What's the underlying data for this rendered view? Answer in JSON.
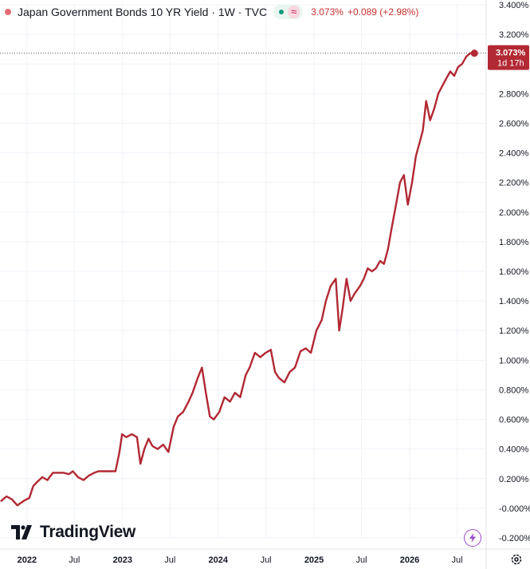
{
  "legend": {
    "title": "Japan Government Bonds 10 YR Yield · 1W · TVC",
    "value": "3.073%",
    "change": "+0.089 (+2.98%)",
    "wave_symbol": "≈"
  },
  "price_tag": {
    "value": "3.073%",
    "countdown": "1d 17h"
  },
  "logo_text": "TradingView",
  "colors": {
    "line": "#b22833",
    "tag_bg": "#b22833",
    "axis_text": "#131722",
    "dotted": "#555555",
    "change_red": "#c8302f"
  },
  "icons": [
    "tradingview-logo-icon",
    "lightning-icon",
    "gear-icon",
    "wave-icon"
  ],
  "chart_data": {
    "type": "line",
    "title": "Japan Government Bonds 10 YR Yield · 1W · TVC",
    "ylim": [
      -0.2,
      3.4
    ],
    "yticks": [
      3.4,
      3.2,
      3.0,
      2.8,
      2.6,
      2.4,
      2.2,
      2.0,
      1.8,
      1.6,
      1.4,
      1.2,
      1.0,
      0.8,
      0.6,
      0.4,
      0.2,
      0.0,
      -0.2
    ],
    "ytick_labels": [
      "3.400%",
      "3.200%",
      "",
      "2.800%",
      "2.600%",
      "2.400%",
      "2.200%",
      "2.000%",
      "1.800%",
      "1.600%",
      "1.400%",
      "1.200%",
      "1.000%",
      "0.800%",
      "0.600%",
      "0.400%",
      "0.200%",
      "-0.000%",
      "-0.200%"
    ],
    "xticks": [
      "2022",
      "Jul",
      "2023",
      "Jul",
      "2024",
      "Jul",
      "2025",
      "Jul",
      "2026",
      "Jul"
    ],
    "xtick_dates": [
      "2022-01-01",
      "2022-07-01",
      "2023-01-01",
      "2023-07-01",
      "2024-01-01",
      "2024-07-01",
      "2025-01-01",
      "2025-07-01",
      "2026-01-01",
      "2026-07-01"
    ],
    "xlim": [
      "2021-09-20",
      "2026-10-20"
    ],
    "grid": true,
    "last_value": 3.073,
    "x": [
      "2021-09-25",
      "2021-10-15",
      "2021-11-05",
      "2021-11-25",
      "2021-12-20",
      "2022-01-10",
      "2022-01-25",
      "2022-02-10",
      "2022-03-01",
      "2022-03-20",
      "2022-04-10",
      "2022-04-30",
      "2022-05-20",
      "2022-06-10",
      "2022-06-25",
      "2022-07-15",
      "2022-08-05",
      "2022-08-25",
      "2022-09-15",
      "2022-10-01",
      "2022-10-25",
      "2022-11-15",
      "2022-12-05",
      "2022-12-20",
      "2022-12-30",
      "2023-01-15",
      "2023-02-05",
      "2023-02-25",
      "2023-03-10",
      "2023-03-25",
      "2023-04-10",
      "2023-04-25",
      "2023-05-15",
      "2023-06-05",
      "2023-06-25",
      "2023-07-15",
      "2023-07-31",
      "2023-08-20",
      "2023-09-10",
      "2023-09-25",
      "2023-10-15",
      "2023-10-31",
      "2023-11-15",
      "2023-11-30",
      "2023-12-15",
      "2024-01-05",
      "2024-01-25",
      "2024-02-15",
      "2024-03-05",
      "2024-03-25",
      "2024-04-15",
      "2024-04-30",
      "2024-05-20",
      "2024-06-10",
      "2024-06-30",
      "2024-07-20",
      "2024-08-05",
      "2024-08-20",
      "2024-09-10",
      "2024-09-30",
      "2024-10-20",
      "2024-11-10",
      "2024-11-30",
      "2024-12-20",
      "2025-01-10",
      "2025-01-30",
      "2025-02-15",
      "2025-03-05",
      "2025-03-25",
      "2025-04-07",
      "2025-04-20",
      "2025-05-05",
      "2025-05-20",
      "2025-06-05",
      "2025-06-25",
      "2025-07-10",
      "2025-07-25",
      "2025-08-10",
      "2025-08-25",
      "2025-09-10",
      "2025-09-25",
      "2025-10-10",
      "2025-10-25",
      "2025-11-10",
      "2025-11-25",
      "2025-12-10",
      "2025-12-25",
      "2026-01-10",
      "2026-01-25",
      "2026-02-05",
      "2026-02-20",
      "2026-03-05",
      "2026-03-20",
      "2026-04-05",
      "2026-04-20",
      "2026-05-05",
      "2026-05-20",
      "2026-06-05",
      "2026-06-20",
      "2026-07-05",
      "2026-07-20",
      "2026-08-05",
      "2026-08-20",
      "2026-09-05"
    ],
    "series": [
      {
        "values": [
          0.05,
          0.08,
          0.06,
          0.02,
          0.05,
          0.07,
          0.15,
          0.18,
          0.21,
          0.19,
          0.24,
          0.24,
          0.24,
          0.23,
          0.25,
          0.21,
          0.19,
          0.22,
          0.24,
          0.25,
          0.25,
          0.25,
          0.25,
          0.38,
          0.5,
          0.48,
          0.5,
          0.48,
          0.3,
          0.4,
          0.47,
          0.42,
          0.4,
          0.43,
          0.38,
          0.55,
          0.62,
          0.65,
          0.72,
          0.78,
          0.88,
          0.95,
          0.78,
          0.62,
          0.6,
          0.65,
          0.75,
          0.72,
          0.78,
          0.75,
          0.9,
          0.95,
          1.05,
          1.02,
          1.05,
          1.07,
          0.92,
          0.88,
          0.85,
          0.92,
          0.95,
          1.06,
          1.08,
          1.05,
          1.2,
          1.27,
          1.4,
          1.5,
          1.55,
          1.2,
          1.35,
          1.55,
          1.4,
          1.45,
          1.5,
          1.55,
          1.62,
          1.6,
          1.62,
          1.67,
          1.65,
          1.75,
          1.9,
          2.05,
          2.2,
          2.25,
          2.05,
          2.2,
          2.38,
          2.45,
          2.55,
          2.75,
          2.62,
          2.7,
          2.8,
          2.85,
          2.9,
          2.95,
          2.92,
          2.98,
          3.0,
          3.05,
          3.073,
          3.073
        ]
      }
    ]
  }
}
